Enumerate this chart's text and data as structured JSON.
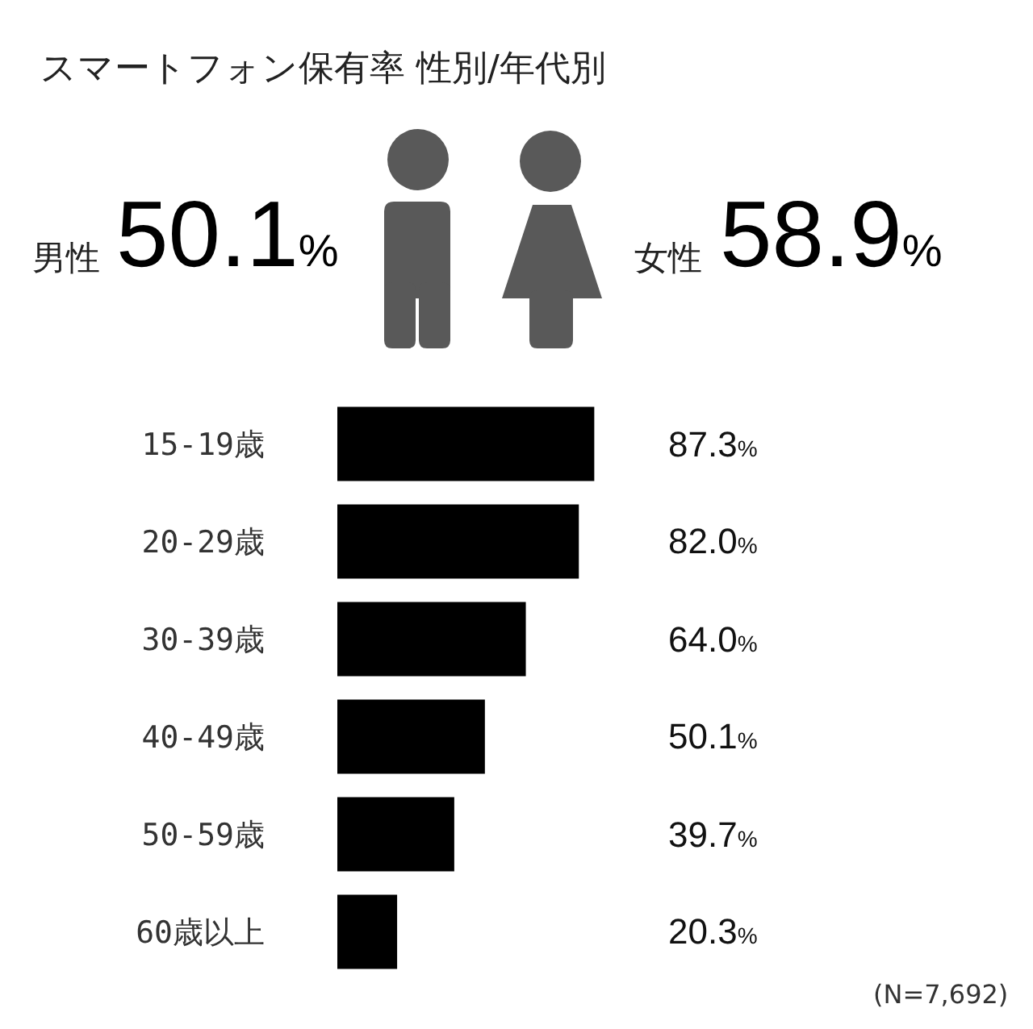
{
  "chart_data": [
    {
      "type": "other",
      "title": "スマートフォン保有率 性別/年代別",
      "categories": [
        "男性",
        "女性"
      ],
      "values": [
        50.1,
        58.9
      ],
      "value_labels": [
        "50.1%",
        "58.9%"
      ]
    },
    {
      "type": "bar",
      "orientation": "horizontal",
      "categories": [
        "15-19歳",
        "20-29歳",
        "30-39歳",
        "40-49歳",
        "50-59歳",
        "60歳以上"
      ],
      "values": [
        87.3,
        82.0,
        64.0,
        50.1,
        39.7,
        20.3
      ],
      "value_labels": [
        "87.3%",
        "82.0%",
        "64.0%",
        "50.1%",
        "39.7%",
        "20.3%"
      ],
      "color": "#000000",
      "tick_labels": "y",
      "annotations": [
        "(N=7,692)"
      ]
    }
  ]
}
